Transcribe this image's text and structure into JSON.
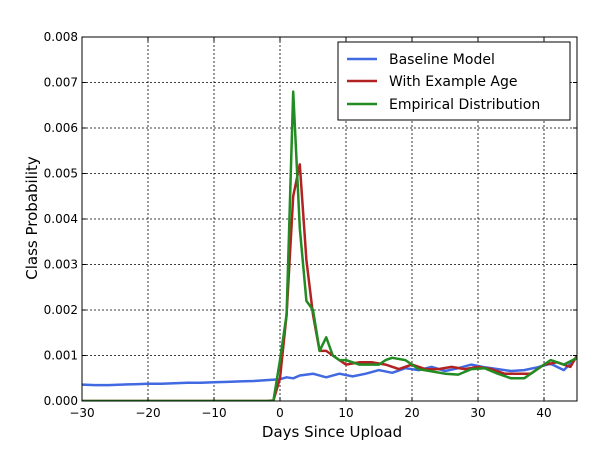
{
  "chart_data": {
    "type": "line",
    "xlabel": "Days Since Upload",
    "ylabel": "Class Probability",
    "xlim": [
      -30,
      45
    ],
    "ylim": [
      0,
      0.008
    ],
    "xticks": [
      -30,
      -20,
      -10,
      0,
      10,
      20,
      30,
      40
    ],
    "xtick_labels": [
      "−30",
      "−20",
      "−10",
      "0",
      "10",
      "20",
      "30",
      "40"
    ],
    "yticks": [
      0,
      0.001,
      0.002,
      0.003,
      0.004,
      0.005,
      0.006,
      0.007,
      0.008
    ],
    "ytick_labels": [
      "0.000",
      "0.001",
      "0.002",
      "0.003",
      "0.004",
      "0.005",
      "0.006",
      "0.007",
      "0.008"
    ],
    "grid": true,
    "legend_position": "top-right",
    "series": [
      {
        "name": "Baseline Model",
        "color": "#4169e1",
        "points": [
          [
            -30,
            0.00036
          ],
          [
            -28,
            0.00035
          ],
          [
            -26,
            0.00035
          ],
          [
            -24,
            0.00036
          ],
          [
            -22,
            0.00037
          ],
          [
            -20,
            0.00038
          ],
          [
            -18,
            0.00038
          ],
          [
            -16,
            0.00039
          ],
          [
            -14,
            0.0004
          ],
          [
            -12,
            0.0004
          ],
          [
            -10,
            0.00041
          ],
          [
            -8,
            0.00042
          ],
          [
            -6,
            0.00043
          ],
          [
            -4,
            0.00044
          ],
          [
            -2,
            0.00046
          ],
          [
            0,
            0.00048
          ],
          [
            1,
            0.00052
          ],
          [
            2,
            0.0005
          ],
          [
            3,
            0.00056
          ],
          [
            5,
            0.0006
          ],
          [
            7,
            0.00052
          ],
          [
            9,
            0.0006
          ],
          [
            11,
            0.00054
          ],
          [
            13,
            0.0006
          ],
          [
            15,
            0.00068
          ],
          [
            17,
            0.00062
          ],
          [
            19,
            0.00072
          ],
          [
            21,
            0.00068
          ],
          [
            23,
            0.00075
          ],
          [
            25,
            0.00066
          ],
          [
            27,
            0.00072
          ],
          [
            29,
            0.0008
          ],
          [
            31,
            0.00074
          ],
          [
            33,
            0.0007
          ],
          [
            35,
            0.00066
          ],
          [
            37,
            0.00068
          ],
          [
            39,
            0.00074
          ],
          [
            41,
            0.00082
          ],
          [
            43,
            0.00068
          ],
          [
            45,
            0.00096
          ]
        ]
      },
      {
        "name": "With Example Age",
        "color": "#b22222",
        "points": [
          [
            -30,
            0.0
          ],
          [
            -20,
            0.0
          ],
          [
            -10,
            0.0
          ],
          [
            -2,
            0.0
          ],
          [
            -1,
            1e-05
          ],
          [
            0,
            0.0005
          ],
          [
            1,
            0.0019
          ],
          [
            2,
            0.0045
          ],
          [
            3,
            0.0052
          ],
          [
            4,
            0.0031
          ],
          [
            5,
            0.0019
          ],
          [
            6,
            0.0011
          ],
          [
            7,
            0.0011
          ],
          [
            8,
            0.001
          ],
          [
            9,
            0.0009
          ],
          [
            10,
            0.0008
          ],
          [
            12,
            0.00085
          ],
          [
            14,
            0.00085
          ],
          [
            16,
            0.0008
          ],
          [
            18,
            0.0007
          ],
          [
            20,
            0.0008
          ],
          [
            22,
            0.0007
          ],
          [
            24,
            0.0007
          ],
          [
            26,
            0.00075
          ],
          [
            28,
            0.0007
          ],
          [
            30,
            0.00075
          ],
          [
            32,
            0.0007
          ],
          [
            34,
            0.0006
          ],
          [
            36,
            0.0006
          ],
          [
            38,
            0.0006
          ],
          [
            40,
            0.0008
          ],
          [
            42,
            0.00085
          ],
          [
            44,
            0.00075
          ],
          [
            45,
            0.001
          ]
        ]
      },
      {
        "name": "Empirical Distribution",
        "color": "#228b22",
        "points": [
          [
            -30,
            0.0
          ],
          [
            -20,
            0.0
          ],
          [
            -10,
            0.0
          ],
          [
            -1,
            0.0
          ],
          [
            0,
            0.0009
          ],
          [
            1,
            0.0019
          ],
          [
            2,
            0.0068
          ],
          [
            3,
            0.0038
          ],
          [
            4,
            0.0022
          ],
          [
            5,
            0.002
          ],
          [
            6,
            0.0011
          ],
          [
            7,
            0.0014
          ],
          [
            8,
            0.001
          ],
          [
            9,
            0.0009
          ],
          [
            10,
            0.0009
          ],
          [
            12,
            0.0008
          ],
          [
            14,
            0.0008
          ],
          [
            15,
            0.0008
          ],
          [
            16,
            0.0009
          ],
          [
            17,
            0.00095
          ],
          [
            19,
            0.0009
          ],
          [
            21,
            0.0007
          ],
          [
            23,
            0.00065
          ],
          [
            25,
            0.0006
          ],
          [
            27,
            0.00058
          ],
          [
            29,
            0.0007
          ],
          [
            31,
            0.00072
          ],
          [
            33,
            0.0006
          ],
          [
            35,
            0.0005
          ],
          [
            37,
            0.0005
          ],
          [
            39,
            0.0007
          ],
          [
            41,
            0.0009
          ],
          [
            43,
            0.0008
          ],
          [
            45,
            0.00095
          ]
        ]
      }
    ]
  }
}
